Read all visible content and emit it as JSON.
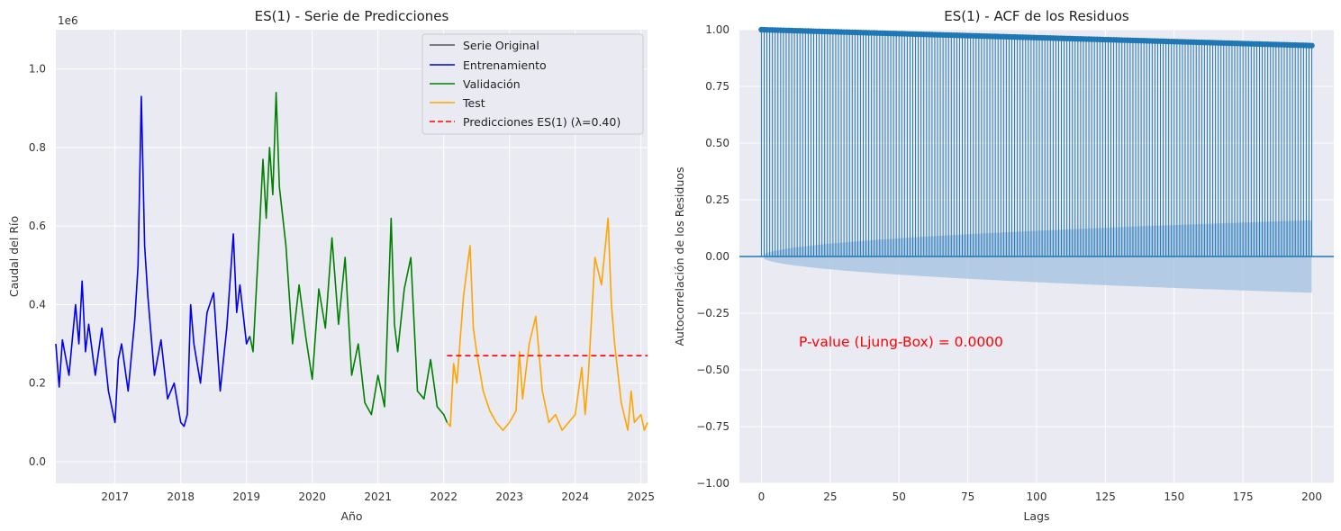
{
  "figure": {
    "colors": {
      "background": "#eaeaf2",
      "original": "#555555",
      "train": "#0000ee",
      "validation": "#008000",
      "test": "#ffa500",
      "prediction": "#ff0000",
      "acf": "#1f77b4",
      "ci": "#a9c6e3",
      "annotation": "#ff0000"
    }
  },
  "chart_data": [
    {
      "type": "line",
      "title": "ES(1) - Serie de Predicciones",
      "xlabel": "Año",
      "ylabel": "Caudal del Río",
      "y_multiplier_label": "1e6",
      "xlim": [
        2016.1,
        2025.1
      ],
      "ylim": [
        -0.055,
        1.1
      ],
      "x_ticks": [
        2017,
        2018,
        2019,
        2020,
        2021,
        2022,
        2023,
        2024,
        2025
      ],
      "x_tick_labels": [
        "2017",
        "2018",
        "2019",
        "2020",
        "2021",
        "2022",
        "2023",
        "2024",
        "2025"
      ],
      "y_ticks": [
        0.0,
        0.2,
        0.4,
        0.6,
        0.8,
        1.0
      ],
      "y_tick_labels": [
        "0.0",
        "0.2",
        "0.4",
        "0.6",
        "0.8",
        "1.0"
      ],
      "grid": true,
      "legend_position": "top-right",
      "legend": [
        {
          "label": "Serie Original",
          "color": "#555555",
          "dash": false
        },
        {
          "label": "Entrenamiento",
          "color": "#0000ee",
          "dash": false
        },
        {
          "label": "Validación",
          "color": "#008000",
          "dash": false
        },
        {
          "label": "Test",
          "color": "#ffa500",
          "dash": false
        },
        {
          "label": "Predicciones ES(1) (λ=0.40)",
          "color": "#ff0000",
          "dash": true
        }
      ],
      "series": [
        {
          "name": "Entrenamiento",
          "color": "#0000ee",
          "points": [
            [
              2016.1,
              0.3
            ],
            [
              2016.15,
              0.19
            ],
            [
              2016.2,
              0.31
            ],
            [
              2016.3,
              0.22
            ],
            [
              2016.4,
              0.4
            ],
            [
              2016.45,
              0.3
            ],
            [
              2016.5,
              0.46
            ],
            [
              2016.55,
              0.28
            ],
            [
              2016.6,
              0.35
            ],
            [
              2016.7,
              0.22
            ],
            [
              2016.8,
              0.34
            ],
            [
              2016.9,
              0.18
            ],
            [
              2017.0,
              0.1
            ],
            [
              2017.05,
              0.26
            ],
            [
              2017.1,
              0.3
            ],
            [
              2017.2,
              0.18
            ],
            [
              2017.3,
              0.36
            ],
            [
              2017.35,
              0.5
            ],
            [
              2017.4,
              0.93
            ],
            [
              2017.45,
              0.55
            ],
            [
              2017.5,
              0.42
            ],
            [
              2017.6,
              0.22
            ],
            [
              2017.7,
              0.31
            ],
            [
              2017.8,
              0.16
            ],
            [
              2017.9,
              0.2
            ],
            [
              2018.0,
              0.1
            ],
            [
              2018.05,
              0.09
            ],
            [
              2018.1,
              0.12
            ],
            [
              2018.15,
              0.4
            ],
            [
              2018.2,
              0.3
            ],
            [
              2018.3,
              0.2
            ],
            [
              2018.4,
              0.38
            ],
            [
              2018.5,
              0.43
            ],
            [
              2018.6,
              0.18
            ],
            [
              2018.7,
              0.34
            ],
            [
              2018.8,
              0.58
            ],
            [
              2018.85,
              0.38
            ],
            [
              2018.9,
              0.45
            ],
            [
              2019.0,
              0.3
            ],
            [
              2019.05,
              0.32
            ]
          ]
        },
        {
          "name": "Validación",
          "color": "#008000",
          "points": [
            [
              2019.05,
              0.32
            ],
            [
              2019.1,
              0.28
            ],
            [
              2019.2,
              0.6
            ],
            [
              2019.25,
              0.77
            ],
            [
              2019.3,
              0.62
            ],
            [
              2019.35,
              0.8
            ],
            [
              2019.4,
              0.68
            ],
            [
              2019.45,
              0.94
            ],
            [
              2019.5,
              0.7
            ],
            [
              2019.6,
              0.55
            ],
            [
              2019.7,
              0.3
            ],
            [
              2019.8,
              0.45
            ],
            [
              2019.9,
              0.32
            ],
            [
              2020.0,
              0.21
            ],
            [
              2020.1,
              0.44
            ],
            [
              2020.2,
              0.34
            ],
            [
              2020.3,
              0.57
            ],
            [
              2020.4,
              0.35
            ],
            [
              2020.5,
              0.52
            ],
            [
              2020.6,
              0.22
            ],
            [
              2020.7,
              0.3
            ],
            [
              2020.8,
              0.15
            ],
            [
              2020.9,
              0.12
            ],
            [
              2021.0,
              0.22
            ],
            [
              2021.1,
              0.14
            ],
            [
              2021.2,
              0.62
            ],
            [
              2021.25,
              0.35
            ],
            [
              2021.3,
              0.28
            ],
            [
              2021.4,
              0.44
            ],
            [
              2021.5,
              0.52
            ],
            [
              2021.6,
              0.18
            ],
            [
              2021.7,
              0.16
            ],
            [
              2021.8,
              0.26
            ],
            [
              2021.9,
              0.14
            ],
            [
              2022.0,
              0.12
            ],
            [
              2022.05,
              0.1
            ]
          ]
        },
        {
          "name": "Test",
          "color": "#ffa500",
          "points": [
            [
              2022.05,
              0.1
            ],
            [
              2022.1,
              0.09
            ],
            [
              2022.15,
              0.25
            ],
            [
              2022.2,
              0.2
            ],
            [
              2022.3,
              0.42
            ],
            [
              2022.4,
              0.55
            ],
            [
              2022.45,
              0.34
            ],
            [
              2022.5,
              0.28
            ],
            [
              2022.6,
              0.18
            ],
            [
              2022.7,
              0.13
            ],
            [
              2022.8,
              0.1
            ],
            [
              2022.9,
              0.08
            ],
            [
              2023.0,
              0.1
            ],
            [
              2023.1,
              0.13
            ],
            [
              2023.15,
              0.28
            ],
            [
              2023.2,
              0.16
            ],
            [
              2023.3,
              0.3
            ],
            [
              2023.4,
              0.37
            ],
            [
              2023.5,
              0.18
            ],
            [
              2023.6,
              0.1
            ],
            [
              2023.7,
              0.12
            ],
            [
              2023.8,
              0.08
            ],
            [
              2023.9,
              0.1
            ],
            [
              2024.0,
              0.12
            ],
            [
              2024.1,
              0.24
            ],
            [
              2024.15,
              0.12
            ],
            [
              2024.2,
              0.22
            ],
            [
              2024.3,
              0.52
            ],
            [
              2024.4,
              0.45
            ],
            [
              2024.5,
              0.62
            ],
            [
              2024.55,
              0.4
            ],
            [
              2024.6,
              0.3
            ],
            [
              2024.7,
              0.15
            ],
            [
              2024.8,
              0.08
            ],
            [
              2024.85,
              0.18
            ],
            [
              2024.9,
              0.1
            ],
            [
              2025.0,
              0.12
            ],
            [
              2025.05,
              0.08
            ],
            [
              2025.1,
              0.1
            ]
          ]
        },
        {
          "name": "Predicciones ES(1) (λ=0.40)",
          "color": "#ff0000",
          "dashed": true,
          "points": [
            [
              2022.05,
              0.27
            ],
            [
              2025.1,
              0.27
            ]
          ]
        }
      ]
    },
    {
      "type": "stem",
      "title": "ES(1) - ACF de los Residuos",
      "xlabel": "Lags",
      "ylabel": "Autocorrelación de los Residuos",
      "xlim": [
        -8,
        208
      ],
      "ylim": [
        -1.0,
        1.0
      ],
      "x_ticks": [
        0,
        25,
        50,
        75,
        100,
        125,
        150,
        175,
        200
      ],
      "x_tick_labels": [
        "0",
        "25",
        "50",
        "75",
        "100",
        "125",
        "150",
        "175",
        "200"
      ],
      "y_ticks": [
        -1.0,
        -0.75,
        -0.5,
        -0.25,
        0.0,
        0.25,
        0.5,
        0.75,
        1.0
      ],
      "y_tick_labels": [
        "−1.00",
        "−0.75",
        "−0.50",
        "−0.25",
        "0.00",
        "0.25",
        "0.50",
        "0.75",
        "1.00"
      ],
      "grid": true,
      "lags": [
        0,
        200
      ],
      "acf_start": 1.0,
      "acf_end": 0.93,
      "confidence_band_end": 0.16,
      "annotation": "P-value (Ljung-Box) = 0.0000"
    }
  ]
}
